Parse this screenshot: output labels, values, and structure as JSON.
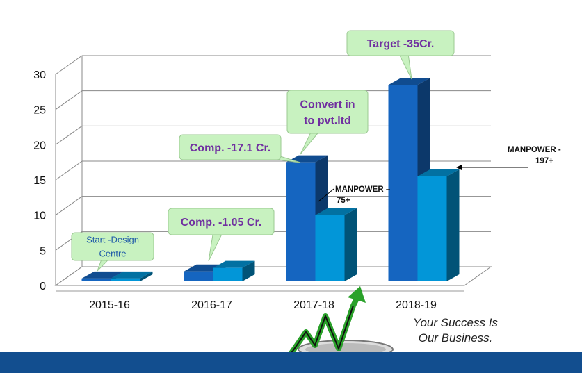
{
  "chart_data": {
    "type": "bar",
    "categories": [
      "2015-16",
      "2016-17",
      "2017-18",
      "2018-19"
    ],
    "series": [
      {
        "values": [
          1,
          2,
          17.5,
          28.5
        ],
        "color": "#1565c0"
      },
      {
        "values": [
          1,
          2.5,
          10,
          15.5
        ],
        "color": "#0296d8"
      }
    ],
    "ylim": [
      0,
      30
    ],
    "yticks": [
      0,
      5,
      10,
      15,
      20,
      25,
      30
    ],
    "grid": true,
    "style": "3d"
  },
  "callouts": [
    {
      "category": "2015-16",
      "lines": [
        "Start -Design",
        "Centre"
      ],
      "color": "#1f5aa8",
      "bold": false
    },
    {
      "category": "2016-17",
      "lines": [
        "Comp.  -1.05 Cr."
      ],
      "color": "#7030a0",
      "bold": true
    },
    {
      "category": "2017-18",
      "lines": [
        "Comp.  -17.1 Cr."
      ],
      "color": "#7030a0",
      "bold": true
    },
    {
      "category": "2017-18",
      "lines": [
        "Convert in",
        "to pvt.ltd"
      ],
      "color": "#7030a0",
      "bold": true
    },
    {
      "category": "2018-19",
      "lines": [
        "Target -35Cr."
      ],
      "color": "#7030a0",
      "bold": true
    }
  ],
  "annotations": {
    "manpower_2017_18": {
      "line1": "MANPOWER –",
      "line2": "75+"
    },
    "manpower_2018_19": {
      "line1": "MANPOWER -",
      "line2": "197+"
    }
  },
  "slogan": {
    "line1": "Your Success Is",
    "line2": "Our Business."
  },
  "colors": {
    "callout_fill": "#c8f2c0",
    "callout_border": "#9bc992",
    "bottom_band": "#124e8f",
    "arrow_green": "#2aa12a"
  },
  "icons": [
    "trampoline-arrow-icon"
  ]
}
